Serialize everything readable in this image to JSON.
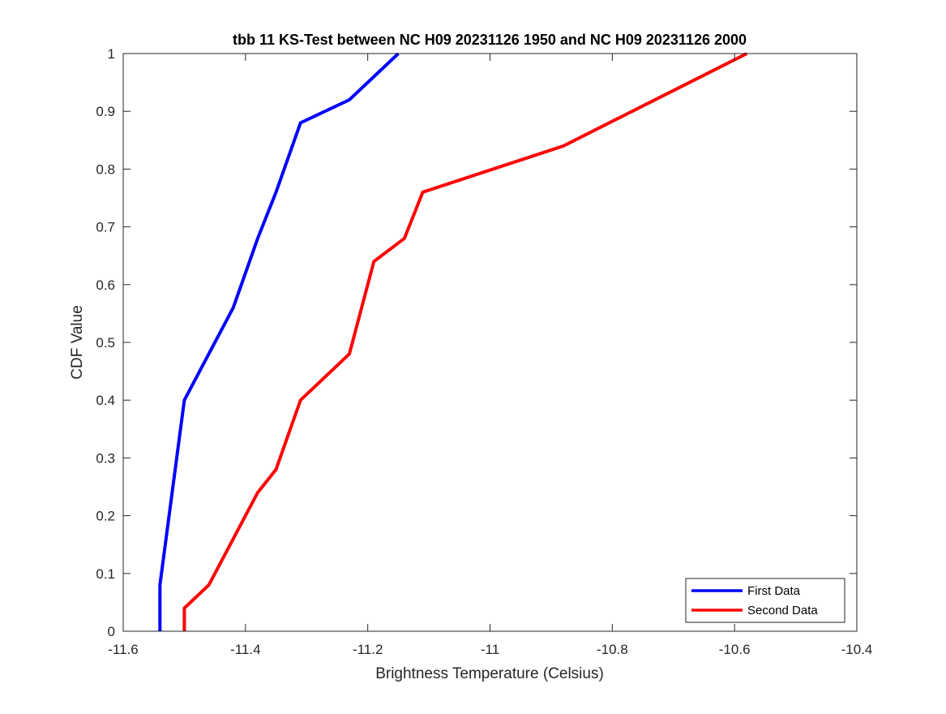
{
  "chart_data": {
    "type": "line",
    "title": "tbb 11 KS-Test between NC H09 20231126 1950 and NC H09 20231126 2000",
    "xlabel": "Brightness Temperature (Celsius)",
    "ylabel": "CDF Value",
    "xlim": [
      -11.6,
      -10.4
    ],
    "ylim": [
      0,
      1
    ],
    "xticks": [
      -11.6,
      -11.4,
      -11.2,
      -11,
      -10.8,
      -10.6,
      -10.4
    ],
    "xtick_labels": [
      "-11.6",
      "-11.4",
      "-11.2",
      "-11",
      "-10.8",
      "-10.6",
      "-10.4"
    ],
    "yticks": [
      0,
      0.1,
      0.2,
      0.3,
      0.4,
      0.5,
      0.6,
      0.7,
      0.8,
      0.9,
      1
    ],
    "ytick_labels": [
      "0",
      "0.1",
      "0.2",
      "0.3",
      "0.4",
      "0.5",
      "0.6",
      "0.7",
      "0.8",
      "0.9",
      "1"
    ],
    "grid": false,
    "box": true,
    "legend_position": "bottom-right",
    "series": [
      {
        "name": "First Data",
        "color": "#0000ff",
        "x": [
          -11.54,
          -11.54,
          -11.5,
          -11.42,
          -11.38,
          -11.35,
          -11.31,
          -11.23,
          -11.15
        ],
        "y": [
          0,
          0.08,
          0.4,
          0.56,
          0.68,
          0.76,
          0.88,
          0.92,
          1
        ]
      },
      {
        "name": "Second Data",
        "color": "#ff0000",
        "x": [
          -11.5,
          -11.5,
          -11.46,
          -11.38,
          -11.35,
          -11.31,
          -11.23,
          -11.19,
          -11.14,
          -11.11,
          -10.88,
          -10.58
        ],
        "y": [
          0,
          0.04,
          0.08,
          0.24,
          0.28,
          0.4,
          0.48,
          0.64,
          0.68,
          0.76,
          0.84,
          1
        ]
      }
    ]
  }
}
